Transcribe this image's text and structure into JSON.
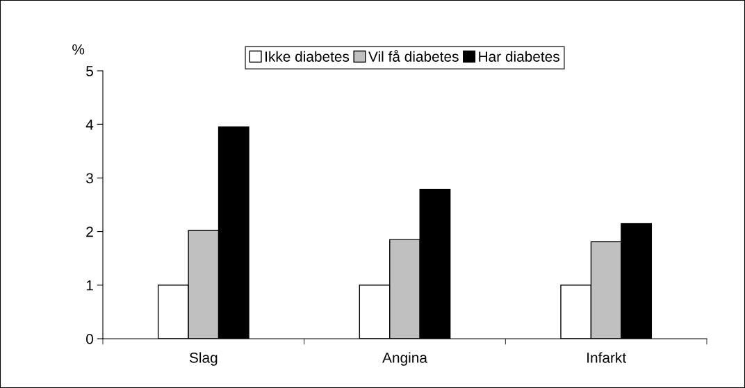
{
  "chart_data": {
    "type": "bar",
    "ylabel": "%",
    "categories": [
      "Slag",
      "Angina",
      "Infarkt"
    ],
    "series": [
      {
        "name": "Ikke diabetes",
        "color": "#ffffff",
        "values": [
          1,
          1,
          1
        ]
      },
      {
        "name": "Vil få diabetes",
        "color": "#c0c0c0",
        "values": [
          2.02,
          1.85,
          1.81
        ]
      },
      {
        "name": "Har diabetes",
        "color": "#000000",
        "values": [
          3.95,
          2.79,
          2.15
        ]
      }
    ],
    "ylim": [
      0,
      5
    ],
    "yticks": [
      0,
      1,
      2,
      3,
      4,
      5
    ],
    "grid": false,
    "legend": "top"
  }
}
